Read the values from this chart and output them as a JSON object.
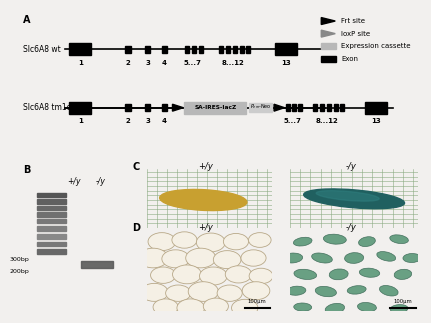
{
  "bg_color": "#f2f0ee",
  "panel_A": {
    "label": "A",
    "wt_label": "Slc6A8 wt",
    "tm1e_label": "Slc6A8 tm1e",
    "legend": {
      "frt_site": "Frt site",
      "loxP_site": "loxP site",
      "expression_cassette": "Expression cassette",
      "exon": "Exon"
    }
  },
  "panel_B": {
    "label": "B",
    "lane1": "+/y",
    "lane2": "-/y",
    "marker_300": "300bp",
    "marker_200": "200bp"
  },
  "panel_C": {
    "label": "C",
    "left_label": "+/y",
    "right_label": "-/y"
  },
  "panel_D": {
    "label": "D",
    "left_label": "+/y",
    "right_label": "-/y",
    "scalebar": "100μm"
  }
}
